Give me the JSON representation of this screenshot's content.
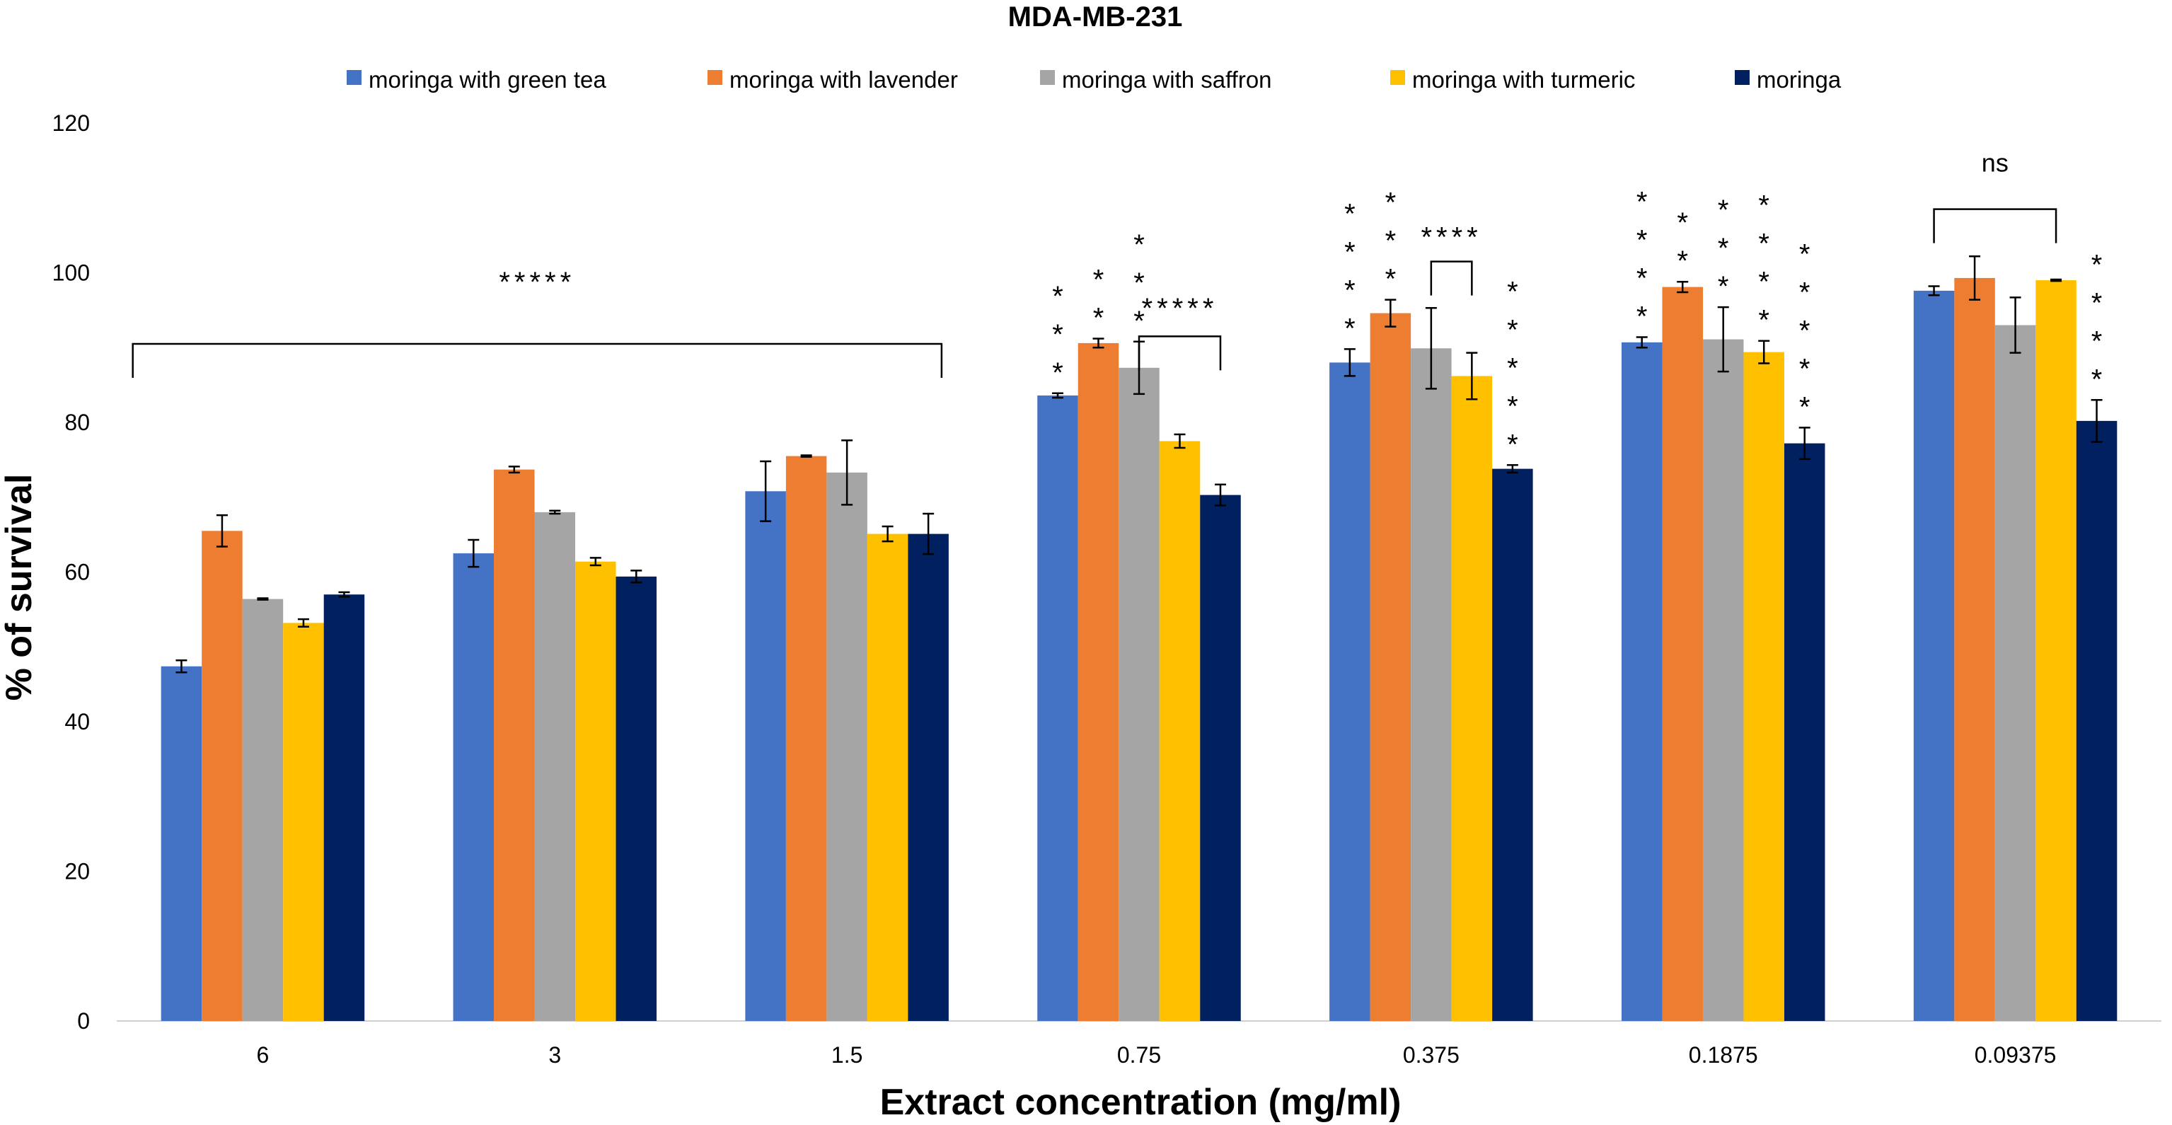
{
  "chart_data": {
    "type": "bar",
    "title": "MDA-MB-231",
    "xlabel": "Extract concentration (mg/ml)",
    "ylabel": "% of survival",
    "ylim": [
      0,
      120
    ],
    "yticks": [
      0,
      20,
      40,
      60,
      80,
      100,
      120
    ],
    "categories": [
      "6",
      "3",
      "1.5",
      "0.75",
      "0.375",
      "0.1875",
      "0.09375"
    ],
    "legend_position": "top",
    "series": [
      {
        "name": "moringa with green tea",
        "color": "#4472C4",
        "values": [
          47.4,
          62.5,
          70.8,
          83.6,
          88.0,
          90.7,
          97.6
        ],
        "errors": [
          0.8,
          1.8,
          4.0,
          0.3,
          1.8,
          0.7,
          0.6
        ]
      },
      {
        "name": "moringa with lavender",
        "color": "#ED7D31",
        "values": [
          65.5,
          73.7,
          75.5,
          90.6,
          94.6,
          98.1,
          99.3
        ],
        "errors": [
          2.1,
          0.4,
          0.1,
          0.6,
          1.8,
          0.7,
          2.9
        ]
      },
      {
        "name": "moringa with saffron",
        "color": "#A5A5A5",
        "values": [
          56.4,
          68.0,
          73.3,
          87.3,
          89.9,
          91.1,
          93.0
        ],
        "errors": [
          0.1,
          0.2,
          4.3,
          3.5,
          5.4,
          4.3,
          3.7
        ]
      },
      {
        "name": "moringa with turmeric",
        "color": "#FFC000",
        "values": [
          53.2,
          61.4,
          65.1,
          77.5,
          86.2,
          89.4,
          99.0
        ],
        "errors": [
          0.5,
          0.5,
          1.0,
          0.9,
          3.1,
          1.5,
          0.1
        ]
      },
      {
        "name": "moringa",
        "color": "#002060",
        "values": [
          57.0,
          59.4,
          65.1,
          70.3,
          73.8,
          77.2,
          80.2
        ],
        "errors": [
          0.3,
          0.8,
          2.7,
          1.4,
          0.5,
          2.1,
          2.8
        ]
      }
    ],
    "annotations": {
      "brackets": [
        {
          "label": "*****",
          "from_category": 0,
          "to_category": 2,
          "y": 90.5,
          "label_y": 97.5
        },
        {
          "label": "*****",
          "from_category": 3,
          "from_series": 2,
          "to_category": 3,
          "to_series": 4,
          "y": 91.5,
          "label_y": 94.0
        },
        {
          "label": "****",
          "from_category": 4,
          "from_series": 2,
          "to_category": 4,
          "to_series": 3,
          "y": 101.5,
          "label_y": 103.5
        },
        {
          "label": "ns",
          "from_category": 6,
          "from_series": 0,
          "to_category": 6,
          "to_series": 3,
          "y": 108.5,
          "label_y": 113.5
        }
      ],
      "star_columns": [
        {
          "category": 3,
          "series": 0,
          "count": 3
        },
        {
          "category": 3,
          "series": 1,
          "count": 2
        },
        {
          "category": 3,
          "series": 2,
          "count": 3
        },
        {
          "category": 4,
          "series": 0,
          "count": 4
        },
        {
          "category": 4,
          "series": 1,
          "count": 3
        },
        {
          "category": 4,
          "series": 4,
          "count": 5
        },
        {
          "category": 5,
          "series": 0,
          "count": 4
        },
        {
          "category": 5,
          "series": 1,
          "count": 2
        },
        {
          "category": 5,
          "series": 2,
          "count": 3
        },
        {
          "category": 5,
          "series": 3,
          "count": 4
        },
        {
          "category": 5,
          "series": 4,
          "count": 5
        },
        {
          "category": 6,
          "series": 4,
          "count": 4
        }
      ]
    }
  }
}
